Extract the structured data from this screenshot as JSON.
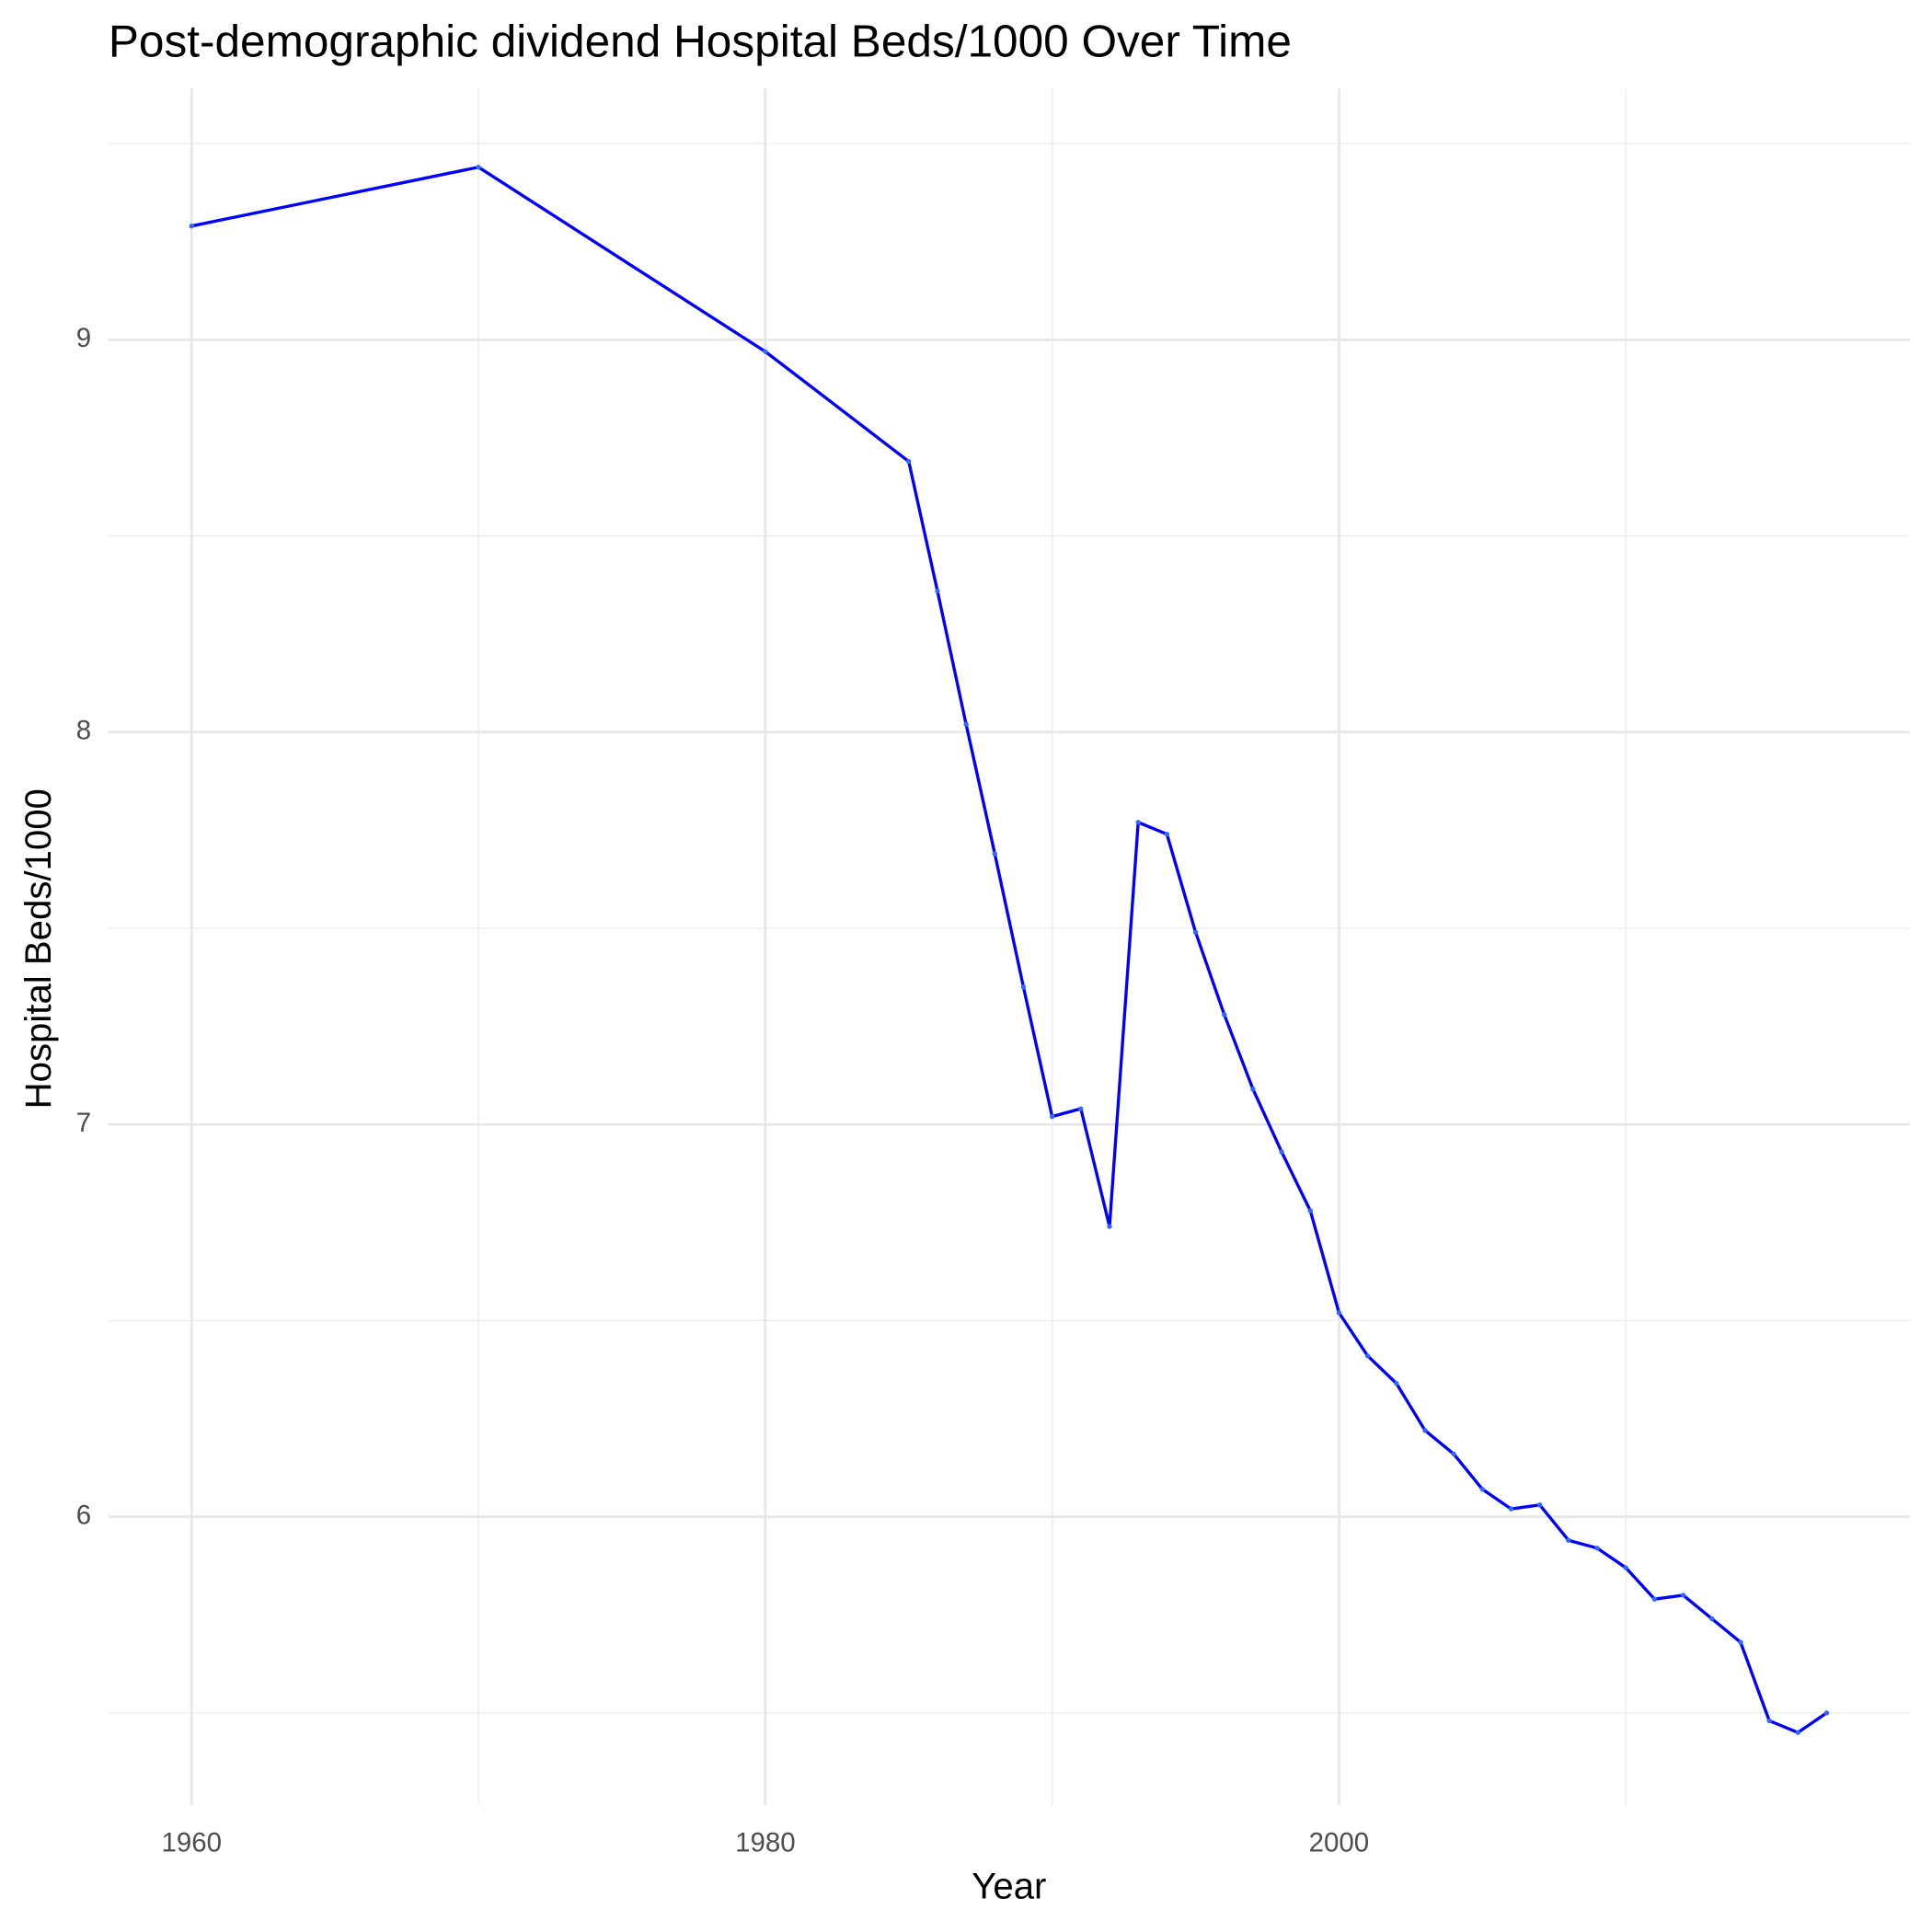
{
  "chart_data": {
    "type": "line",
    "title": "Post-demographic dividend Hospital Beds/1000 Over Time",
    "x_label": "Year",
    "y_label": "Hospital Beds/1000",
    "x": [
      1960,
      1970,
      1980,
      1985,
      1986,
      1987,
      1988,
      1989,
      1990,
      1991,
      1992,
      1993,
      1994,
      1995,
      1996,
      1997,
      1998,
      1999,
      2000,
      2001,
      2002,
      2003,
      2004,
      2005,
      2006,
      2007,
      2008,
      2009,
      2010,
      2011,
      2012,
      2013,
      2014,
      2015,
      2016,
      2017
    ],
    "series": [
      {
        "name": "Hospital Beds/1000",
        "color": "#0000ff",
        "values": [
          9.29,
          9.44,
          8.97,
          8.69,
          8.36,
          8.02,
          7.69,
          7.35,
          7.02,
          7.04,
          6.74,
          7.77,
          7.74,
          7.49,
          7.28,
          7.09,
          6.93,
          6.78,
          6.52,
          6.41,
          6.34,
          6.22,
          6.16,
          6.07,
          6.02,
          6.03,
          5.94,
          5.92,
          5.87,
          5.79,
          5.8,
          5.74,
          5.68,
          5.48,
          5.45,
          5.5
        ]
      }
    ],
    "xlim": [
      1957.1,
      2019.9
    ],
    "xticks": [
      1960,
      1980,
      2000
    ],
    "x_minor_grid": [
      1970,
      1990,
      2010
    ],
    "ylim": [
      5.265,
      9.64
    ],
    "yticks": [
      6,
      7,
      8,
      9
    ],
    "y_minor_grid": [
      5.5,
      6.5,
      7.5,
      8.5,
      9.5
    ],
    "grid": true
  }
}
